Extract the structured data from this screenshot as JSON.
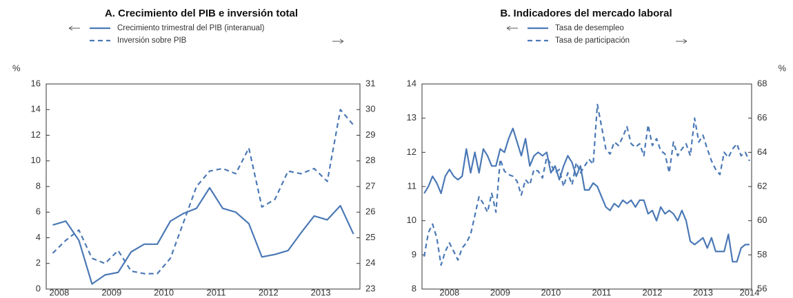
{
  "chart_data": [
    {
      "type": "line",
      "title": "A. Crecimiento del PIB e inversión total",
      "ylabel": "%",
      "categories": [
        "2008",
        null,
        null,
        null,
        "2009",
        null,
        null,
        null,
        "2010",
        null,
        null,
        null,
        "2011",
        null,
        null,
        null,
        "2012",
        null,
        null,
        null,
        "2013",
        null,
        null,
        null
      ],
      "series": [
        {
          "name": "Crecimiento trimestral del PIB (interanual)",
          "color": "#4a78b5",
          "line_style": "solid",
          "values": [
            5.0,
            5.3,
            3.8,
            0.4,
            1.1,
            1.3,
            2.9,
            3.5,
            3.5,
            5.3,
            5.9,
            6.3,
            7.9,
            6.3,
            6.0,
            5.1,
            2.5,
            2.7,
            3.0,
            4.4,
            5.7,
            5.4,
            6.5,
            4.3
          ]
        },
        {
          "name": "Inversión sobre PIB",
          "color": "#4a78b5",
          "line_style": "dashed",
          "axis": "y2",
          "values": [
            24.4,
            24.9,
            25.3,
            24.2,
            24.0,
            24.5,
            23.7,
            23.6,
            23.6,
            24.2,
            25.6,
            27.0,
            27.6,
            27.7,
            27.5,
            28.5,
            26.2,
            26.5,
            27.6,
            27.5,
            27.7,
            27.2,
            30.0,
            29.4
          ]
        }
      ],
      "ylim": [
        0,
        16
      ],
      "yticks": [
        0,
        2,
        4,
        6,
        8,
        10,
        12,
        14,
        16
      ],
      "y2lim": [
        23,
        31
      ],
      "y2ticks": [
        23,
        24,
        25,
        26,
        27,
        28,
        29,
        30,
        31
      ]
    },
    {
      "type": "line",
      "title": "B. Indicadores del mercado laboral",
      "y2label": "%",
      "categories": [
        null,
        null,
        null,
        null,
        null,
        null,
        "2008",
        null,
        null,
        null,
        null,
        null,
        null,
        null,
        null,
        null,
        null,
        null,
        "2009",
        null,
        null,
        null,
        null,
        null,
        null,
        null,
        null,
        null,
        null,
        null,
        "2010",
        null,
        null,
        null,
        null,
        null,
        null,
        null,
        null,
        null,
        null,
        null,
        "2011",
        null,
        null,
        null,
        null,
        null,
        null,
        null,
        null,
        null,
        null,
        null,
        "2012",
        null,
        null,
        null,
        null,
        null,
        null,
        null,
        null,
        null,
        null,
        null,
        "2013",
        null,
        null,
        null,
        null,
        null,
        null,
        null,
        null,
        null,
        null,
        "2014"
      ],
      "series": [
        {
          "name": "Tasa de desempleo",
          "color": "#4a78b5",
          "line_style": "solid",
          "values": [
            10.8,
            11.0,
            11.3,
            11.1,
            10.8,
            11.3,
            11.5,
            11.3,
            11.2,
            11.3,
            12.1,
            11.4,
            12.0,
            11.4,
            12.1,
            11.9,
            11.6,
            11.6,
            12.1,
            12.0,
            12.4,
            12.7,
            12.3,
            11.9,
            12.4,
            11.6,
            11.9,
            12.0,
            11.9,
            12.0,
            11.4,
            11.6,
            11.2,
            11.6,
            11.9,
            11.7,
            11.3,
            11.6,
            10.9,
            10.9,
            11.1,
            11.0,
            10.7,
            10.4,
            10.3,
            10.5,
            10.4,
            10.6,
            10.5,
            10.6,
            10.4,
            10.6,
            10.6,
            10.2,
            10.3,
            10.0,
            10.4,
            10.2,
            10.3,
            10.2,
            10.0,
            10.3,
            10.0,
            9.4,
            9.3,
            9.4,
            9.5,
            9.2,
            9.5,
            9.1,
            9.1,
            9.1,
            9.6,
            8.8,
            8.8,
            9.2,
            9.3,
            9.3
          ]
        },
        {
          "name": "Tasa de participación",
          "color": "#4a78b5",
          "line_style": "dashed",
          "axis": "y2",
          "values": [
            57.9,
            59.3,
            59.8,
            59.0,
            57.4,
            58.2,
            58.7,
            58.2,
            57.7,
            58.4,
            58.7,
            59.2,
            60.3,
            61.4,
            61.0,
            60.5,
            61.6,
            60.5,
            63.6,
            62.9,
            62.7,
            62.6,
            62.3,
            61.5,
            62.4,
            62.1,
            63.0,
            62.9,
            62.5,
            63.7,
            63.3,
            62.8,
            63.0,
            62.0,
            62.8,
            62.1,
            63.4,
            62.8,
            63.2,
            63.6,
            63.3,
            66.8,
            65.5,
            64.2,
            63.9,
            64.6,
            64.4,
            64.9,
            65.5,
            64.5,
            64.3,
            64.5,
            63.8,
            65.6,
            64.4,
            64.8,
            64.1,
            63.9,
            62.8,
            64.6,
            63.8,
            64.2,
            64.5,
            63.8,
            66.0,
            64.6,
            65.0,
            64.2,
            63.5,
            63.0,
            62.7,
            64.0,
            63.7,
            64.2,
            64.5,
            63.8,
            64.0,
            63.5
          ]
        }
      ],
      "ylim": [
        8,
        14
      ],
      "yticks": [
        8,
        9,
        10,
        11,
        12,
        13,
        14
      ],
      "y2lim": [
        56,
        68
      ],
      "y2ticks": [
        56,
        58,
        60,
        62,
        64,
        66,
        68
      ]
    }
  ]
}
